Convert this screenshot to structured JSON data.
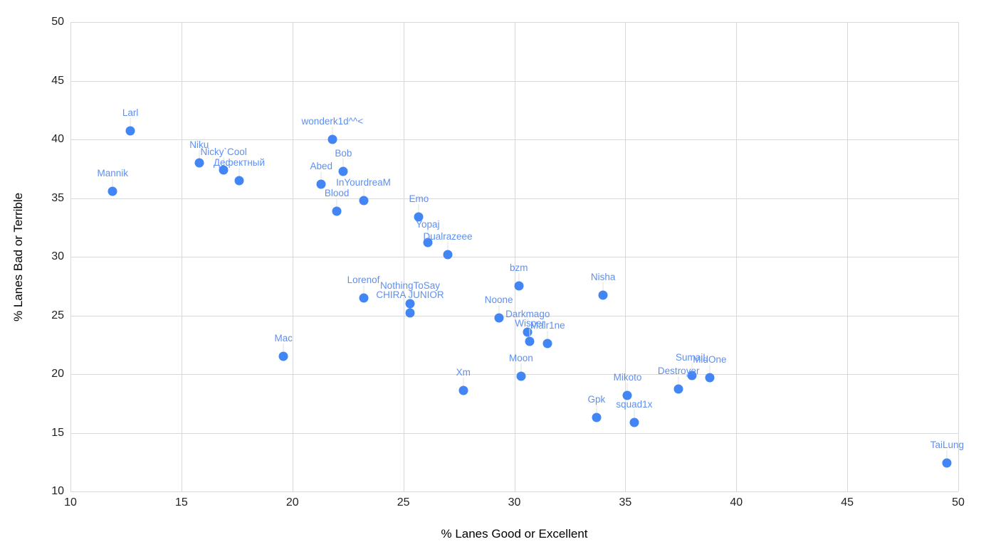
{
  "chart_data": {
    "type": "scatter",
    "title": "",
    "xlabel": "% Lanes Good or Excellent",
    "ylabel": "% Lanes Bad or Terrible",
    "xlim": [
      10,
      50
    ],
    "ylim": [
      10,
      50
    ],
    "xticks": [
      10,
      15,
      20,
      25,
      30,
      35,
      40,
      45,
      50
    ],
    "yticks": [
      10,
      15,
      20,
      25,
      30,
      35,
      40,
      45,
      50
    ],
    "grid": true,
    "legend": "none",
    "colors": {
      "point": "#4285f4",
      "data_label": "#5e8ff2",
      "gridline": "#d9d9d9",
      "leader_line": "#e2e2e2",
      "tick_text": "#212121",
      "axis_title_text": "#000000"
    },
    "series": [
      {
        "name": "players",
        "points": [
          {
            "label": "Larl",
            "x": 12.7,
            "y": 40.7
          },
          {
            "label": "Mannik",
            "x": 11.9,
            "y": 35.6
          },
          {
            "label": "Niku",
            "x": 15.8,
            "y": 38.0
          },
          {
            "label": "Nicky`Cool",
            "x": 16.9,
            "y": 37.4
          },
          {
            "label": "Дефектный",
            "x": 17.6,
            "y": 36.5
          },
          {
            "label": "wonderk1d^^<",
            "x": 21.8,
            "y": 40.0
          },
          {
            "label": "Bob",
            "x": 22.3,
            "y": 37.3
          },
          {
            "label": "Abed",
            "x": 21.3,
            "y": 36.2
          },
          {
            "label": "Blood",
            "x": 22.0,
            "y": 33.9
          },
          {
            "label": "InYourdreaM",
            "x": 23.2,
            "y": 34.8
          },
          {
            "label": "Emo",
            "x": 25.7,
            "y": 33.4
          },
          {
            "label": "Yopaj",
            "x": 26.1,
            "y": 31.2
          },
          {
            "label": "Dualrazeee",
            "x": 27.0,
            "y": 30.2
          },
          {
            "label": "Mac",
            "x": 19.6,
            "y": 21.5
          },
          {
            "label": "Lorenof",
            "x": 23.2,
            "y": 26.5
          },
          {
            "label": "CHIRA JUNIOR",
            "x": 25.3,
            "y": 25.2
          },
          {
            "label": "NothingToSay",
            "x": 25.3,
            "y": 26.0
          },
          {
            "label": "bzm",
            "x": 30.2,
            "y": 27.5
          },
          {
            "label": "Noone",
            "x": 29.3,
            "y": 24.8
          },
          {
            "label": "Darkmago",
            "x": 30.6,
            "y": 23.6
          },
          {
            "label": "Malr1ne",
            "x": 31.5,
            "y": 22.6
          },
          {
            "label": "Wisper",
            "x": 30.7,
            "y": 22.8
          },
          {
            "label": "Nisha",
            "x": 34.0,
            "y": 26.7
          },
          {
            "label": "Moon",
            "x": 30.3,
            "y": 19.8
          },
          {
            "label": "Xm",
            "x": 27.7,
            "y": 18.6
          },
          {
            "label": "Mikoto",
            "x": 35.1,
            "y": 18.2
          },
          {
            "label": "Gpk",
            "x": 33.7,
            "y": 16.3
          },
          {
            "label": "squad1x",
            "x": 35.4,
            "y": 15.9
          },
          {
            "label": "MidOne",
            "x": 38.8,
            "y": 19.7
          },
          {
            "label": "SumaiL",
            "x": 38.0,
            "y": 19.9
          },
          {
            "label": "Destroyer",
            "x": 37.4,
            "y": 18.7
          },
          {
            "label": "TaiLung",
            "x": 49.5,
            "y": 12.4
          }
        ]
      }
    ]
  }
}
